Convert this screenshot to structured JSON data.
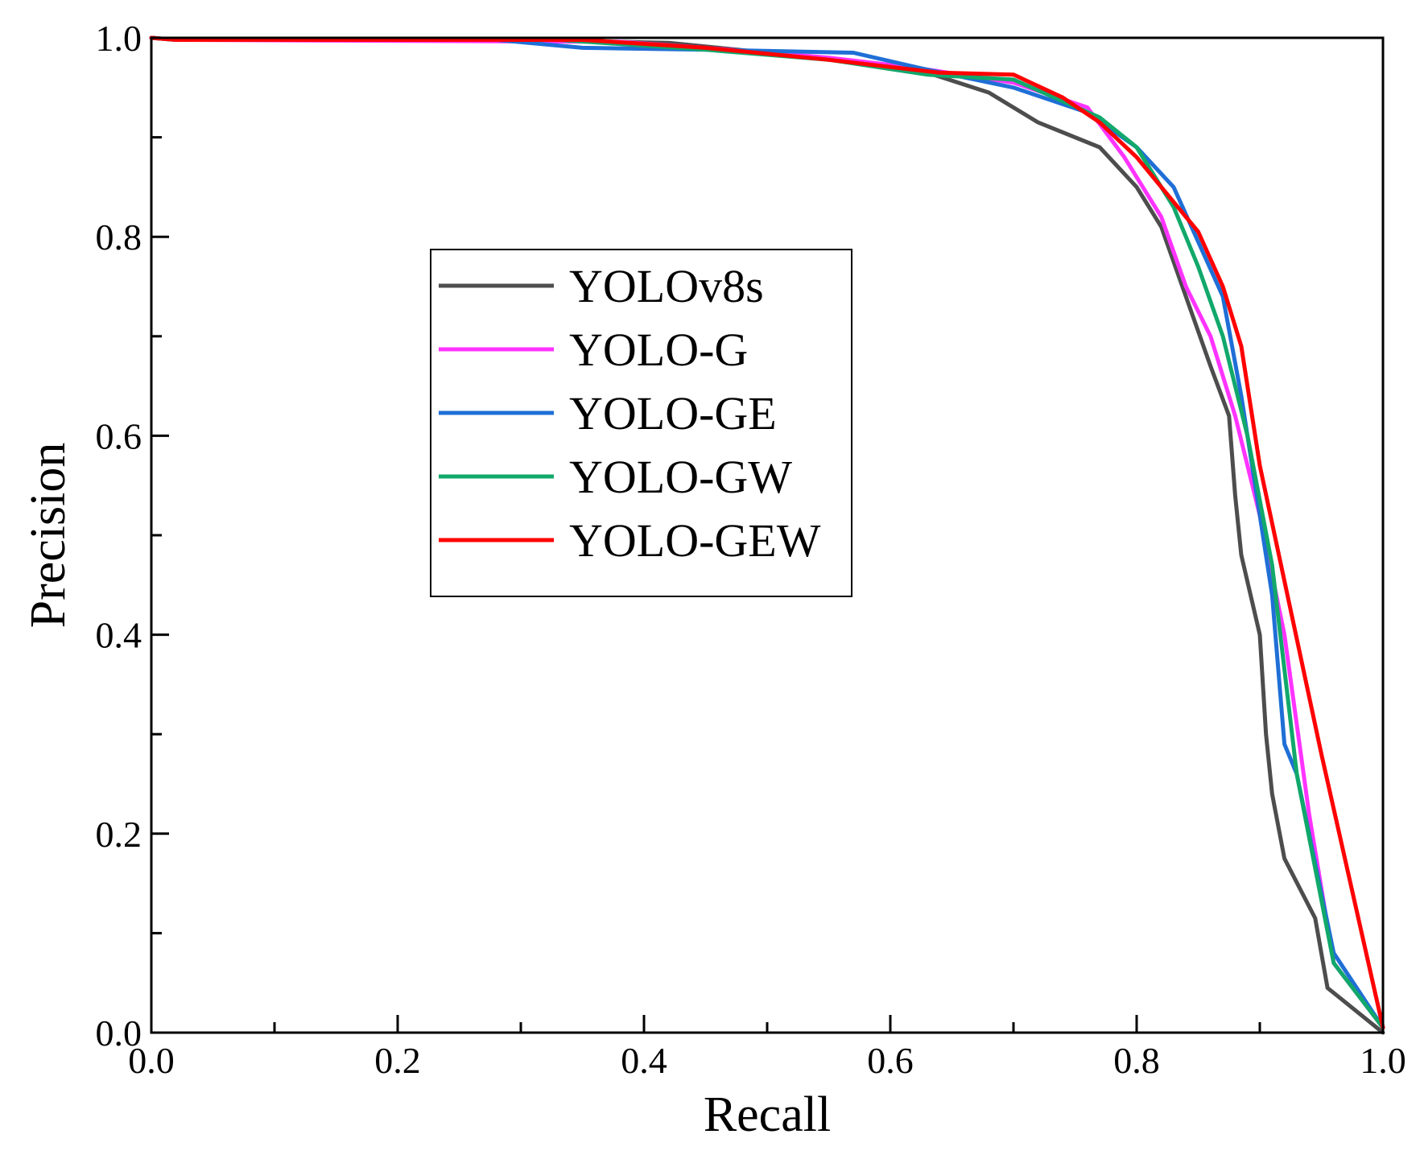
{
  "chart_data": {
    "type": "line",
    "title": "",
    "xlabel": "Recall",
    "ylabel": "Precision",
    "xlim": [
      0.0,
      1.0
    ],
    "ylim": [
      0.0,
      1.0
    ],
    "xticks": [
      "0.0",
      "0.2",
      "0.4",
      "0.6",
      "0.8",
      "1.0"
    ],
    "yticks": [
      "0.0",
      "0.2",
      "0.4",
      "0.6",
      "0.8",
      "1.0"
    ],
    "grid": false,
    "legend_position": "center-left",
    "series": [
      {
        "name": "YOLOv8s",
        "color": "#4d4d4d",
        "points": [
          [
            0.0,
            1.0
          ],
          [
            0.02,
            0.998
          ],
          [
            0.3,
            0.998
          ],
          [
            0.42,
            0.995
          ],
          [
            0.5,
            0.985
          ],
          [
            0.6,
            0.972
          ],
          [
            0.63,
            0.965
          ],
          [
            0.68,
            0.945
          ],
          [
            0.72,
            0.915
          ],
          [
            0.77,
            0.89
          ],
          [
            0.8,
            0.85
          ],
          [
            0.82,
            0.81
          ],
          [
            0.84,
            0.74
          ],
          [
            0.86,
            0.67
          ],
          [
            0.875,
            0.62
          ],
          [
            0.88,
            0.54
          ],
          [
            0.885,
            0.48
          ],
          [
            0.9,
            0.4
          ],
          [
            0.905,
            0.3
          ],
          [
            0.91,
            0.24
          ],
          [
            0.92,
            0.175
          ],
          [
            0.945,
            0.115
          ],
          [
            0.955,
            0.045
          ],
          [
            0.97,
            0.03
          ],
          [
            1.0,
            0.0
          ]
        ]
      },
      {
        "name": "YOLO-G",
        "color": "#ff33ff",
        "points": [
          [
            0.0,
            1.0
          ],
          [
            0.02,
            0.998
          ],
          [
            0.38,
            0.996
          ],
          [
            0.45,
            0.99
          ],
          [
            0.55,
            0.98
          ],
          [
            0.62,
            0.97
          ],
          [
            0.7,
            0.955
          ],
          [
            0.76,
            0.93
          ],
          [
            0.79,
            0.88
          ],
          [
            0.82,
            0.82
          ],
          [
            0.84,
            0.75
          ],
          [
            0.86,
            0.7
          ],
          [
            0.88,
            0.62
          ],
          [
            0.9,
            0.52
          ],
          [
            0.92,
            0.4
          ],
          [
            0.94,
            0.22
          ],
          [
            0.96,
            0.07
          ],
          [
            1.0,
            0.005
          ]
        ]
      },
      {
        "name": "YOLO-GE",
        "color": "#1f6fd6",
        "points": [
          [
            0.0,
            1.0
          ],
          [
            0.02,
            0.998
          ],
          [
            0.28,
            0.998
          ],
          [
            0.35,
            0.99
          ],
          [
            0.45,
            0.988
          ],
          [
            0.57,
            0.985
          ],
          [
            0.63,
            0.968
          ],
          [
            0.7,
            0.95
          ],
          [
            0.76,
            0.925
          ],
          [
            0.8,
            0.89
          ],
          [
            0.83,
            0.85
          ],
          [
            0.87,
            0.74
          ],
          [
            0.885,
            0.64
          ],
          [
            0.9,
            0.52
          ],
          [
            0.91,
            0.44
          ],
          [
            0.92,
            0.29
          ],
          [
            0.93,
            0.26
          ],
          [
            0.96,
            0.08
          ],
          [
            1.0,
            0.005
          ]
        ]
      },
      {
        "name": "YOLO-GW",
        "color": "#11a86b",
        "points": [
          [
            0.0,
            1.0
          ],
          [
            0.02,
            0.998
          ],
          [
            0.33,
            0.998
          ],
          [
            0.45,
            0.988
          ],
          [
            0.55,
            0.978
          ],
          [
            0.63,
            0.963
          ],
          [
            0.7,
            0.958
          ],
          [
            0.77,
            0.92
          ],
          [
            0.8,
            0.89
          ],
          [
            0.83,
            0.83
          ],
          [
            0.85,
            0.77
          ],
          [
            0.87,
            0.7
          ],
          [
            0.89,
            0.6
          ],
          [
            0.91,
            0.47
          ],
          [
            0.93,
            0.26
          ],
          [
            0.96,
            0.07
          ],
          [
            1.0,
            0.005
          ]
        ]
      },
      {
        "name": "YOLO-GEW",
        "color": "#ff0000",
        "points": [
          [
            0.0,
            1.0
          ],
          [
            0.02,
            0.998
          ],
          [
            0.35,
            0.998
          ],
          [
            0.45,
            0.99
          ],
          [
            0.55,
            0.978
          ],
          [
            0.64,
            0.965
          ],
          [
            0.7,
            0.963
          ],
          [
            0.74,
            0.94
          ],
          [
            0.77,
            0.915
          ],
          [
            0.8,
            0.88
          ],
          [
            0.85,
            0.805
          ],
          [
            0.87,
            0.75
          ],
          [
            0.885,
            0.69
          ],
          [
            0.9,
            0.57
          ],
          [
            0.95,
            0.28
          ],
          [
            1.0,
            0.005
          ]
        ]
      }
    ]
  }
}
